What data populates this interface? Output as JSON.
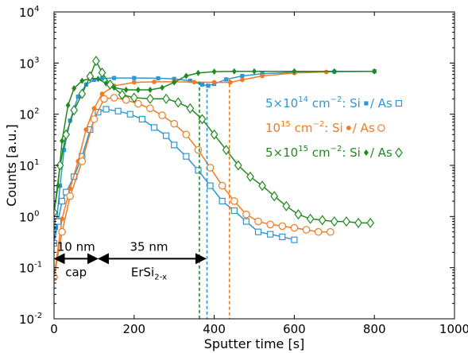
{
  "chart_data": {
    "type": "line",
    "title": "",
    "xlabel": "Sputter time [s]",
    "ylabel": "Counts [a.u.]",
    "xlim": [
      0,
      1000
    ],
    "ylim": [
      0.01,
      10000
    ],
    "y_scale": "log",
    "grid": false,
    "x_ticks": [
      "0",
      "200",
      "400",
      "600",
      "800",
      "1000"
    ],
    "y_ticks": [
      {
        "base": "10",
        "exp": "-2"
      },
      {
        "base": "10",
        "exp": "-1"
      },
      {
        "base": "10",
        "exp": "0"
      },
      {
        "base": "10",
        "exp": "1"
      },
      {
        "base": "10",
        "exp": "2"
      },
      {
        "base": "10",
        "exp": "3"
      },
      {
        "base": "10",
        "exp": "4"
      }
    ],
    "legend": {
      "placement": "right",
      "entries": [
        {
          "dose_mant": "5×10",
          "dose_exp": "14",
          "unit": " cm",
          "unit_exp": "−2",
          "si": ": Si",
          "as": " / As",
          "color": "#2f96d3",
          "si_marker": "square-filled",
          "as_marker": "square-open"
        },
        {
          "dose_mant": "10",
          "dose_exp": "15",
          "unit": " cm",
          "unit_exp": "−2",
          "si": ": Si",
          "as": " / As",
          "color": "#f07b25",
          "si_marker": "circle-filled",
          "as_marker": "circle-open"
        },
        {
          "dose_mant": "5×10",
          "dose_exp": "15",
          "unit": " cm",
          "unit_exp": "−2",
          "si": ": Si",
          "as": " / As",
          "color": "#1f8a1f",
          "si_marker": "diamond-filled",
          "as_marker": "diamond-open"
        }
      ]
    },
    "annotations": {
      "cap_thickness": "10 nm",
      "cap_label": "cap",
      "film_thickness": "35 nm",
      "film_label_main": "ErSi",
      "film_label_sub": "2-x",
      "cap_range": [
        0,
        110
      ],
      "film_range": [
        110,
        380
      ],
      "arrow_level": 0.15,
      "interface_lines": [
        {
          "x": 382,
          "y_top": 400,
          "color": "#2f96d3"
        },
        {
          "x": 438,
          "y_top": 500,
          "color": "#f07b25"
        },
        {
          "x": 363,
          "y_top": 430,
          "color": "#1f8a1f"
        }
      ]
    },
    "series": [
      {
        "color": "#2f96d3",
        "marker": "square",
        "filled": true,
        "points": [
          [
            0,
            0.3
          ],
          [
            5,
            0.6
          ],
          [
            15,
            4
          ],
          [
            25,
            20
          ],
          [
            40,
            75
          ],
          [
            60,
            220
          ],
          [
            80,
            380
          ],
          [
            100,
            470
          ],
          [
            120,
            500
          ],
          [
            150,
            510
          ],
          [
            200,
            510
          ],
          [
            260,
            505
          ],
          [
            300,
            490
          ],
          [
            340,
            450
          ],
          [
            370,
            380
          ],
          [
            385,
            360
          ],
          [
            400,
            390
          ],
          [
            430,
            480
          ],
          [
            470,
            560
          ],
          [
            520,
            620
          ],
          [
            600,
            660
          ],
          [
            700,
            680
          ],
          [
            800,
            690
          ]
        ]
      },
      {
        "color": "#2f96d3",
        "marker": "square",
        "filled": false,
        "points": [
          [
            0,
            0.3
          ],
          [
            10,
            0.8
          ],
          [
            20,
            2
          ],
          [
            30,
            3
          ],
          [
            50,
            6
          ],
          [
            70,
            15
          ],
          [
            90,
            50
          ],
          [
            110,
            110
          ],
          [
            130,
            125
          ],
          [
            160,
            115
          ],
          [
            190,
            100
          ],
          [
            220,
            80
          ],
          [
            250,
            55
          ],
          [
            280,
            38
          ],
          [
            300,
            25
          ],
          [
            330,
            15
          ],
          [
            360,
            8
          ],
          [
            390,
            4
          ],
          [
            420,
            2
          ],
          [
            450,
            1.3
          ],
          [
            480,
            0.8
          ],
          [
            510,
            0.5
          ],
          [
            540,
            0.45
          ],
          [
            570,
            0.4
          ],
          [
            600,
            0.35
          ]
        ]
      },
      {
        "color": "#f07b25",
        "marker": "circle",
        "filled": true,
        "points": [
          [
            0,
            0.065
          ],
          [
            20,
            0.9
          ],
          [
            40,
            3.5
          ],
          [
            60,
            12
          ],
          [
            80,
            50
          ],
          [
            100,
            130
          ],
          [
            120,
            250
          ],
          [
            150,
            360
          ],
          [
            200,
            420
          ],
          [
            250,
            430
          ],
          [
            300,
            430
          ],
          [
            350,
            425
          ],
          [
            400,
            420
          ],
          [
            440,
            420
          ],
          [
            470,
            470
          ],
          [
            520,
            560
          ],
          [
            600,
            640
          ],
          [
            680,
            670
          ]
        ]
      },
      {
        "color": "#f07b25",
        "marker": "circle",
        "filled": false,
        "points": [
          [
            0,
            0.065
          ],
          [
            20,
            0.5
          ],
          [
            40,
            2.5
          ],
          [
            70,
            12
          ],
          [
            100,
            80
          ],
          [
            125,
            200
          ],
          [
            150,
            210
          ],
          [
            180,
            190
          ],
          [
            210,
            160
          ],
          [
            240,
            130
          ],
          [
            270,
            95
          ],
          [
            300,
            65
          ],
          [
            330,
            40
          ],
          [
            360,
            20
          ],
          [
            390,
            9
          ],
          [
            420,
            4
          ],
          [
            450,
            2
          ],
          [
            480,
            1.1
          ],
          [
            510,
            0.8
          ],
          [
            540,
            0.7
          ],
          [
            570,
            0.65
          ],
          [
            600,
            0.6
          ],
          [
            630,
            0.55
          ],
          [
            660,
            0.5
          ],
          [
            690,
            0.5
          ]
        ]
      },
      {
        "color": "#1f8a1f",
        "marker": "diamond",
        "filled": true,
        "points": [
          [
            0,
            1.2
          ],
          [
            10,
            4
          ],
          [
            20,
            30
          ],
          [
            35,
            150
          ],
          [
            50,
            320
          ],
          [
            70,
            450
          ],
          [
            90,
            500
          ],
          [
            110,
            490
          ],
          [
            130,
            400
          ],
          [
            150,
            330
          ],
          [
            180,
            300
          ],
          [
            210,
            300
          ],
          [
            240,
            300
          ],
          [
            270,
            330
          ],
          [
            300,
            420
          ],
          [
            330,
            560
          ],
          [
            360,
            640
          ],
          [
            400,
            680
          ],
          [
            450,
            690
          ],
          [
            500,
            690
          ],
          [
            600,
            690
          ],
          [
            700,
            690
          ],
          [
            800,
            690
          ]
        ]
      },
      {
        "color": "#1f8a1f",
        "marker": "diamond",
        "filled": false,
        "points": [
          [
            0,
            1.2
          ],
          [
            15,
            10
          ],
          [
            30,
            40
          ],
          [
            50,
            120
          ],
          [
            70,
            250
          ],
          [
            90,
            550
          ],
          [
            105,
            1100
          ],
          [
            120,
            650
          ],
          [
            140,
            380
          ],
          [
            170,
            240
          ],
          [
            200,
            210
          ],
          [
            240,
            200
          ],
          [
            280,
            200
          ],
          [
            310,
            170
          ],
          [
            340,
            130
          ],
          [
            370,
            80
          ],
          [
            400,
            40
          ],
          [
            430,
            20
          ],
          [
            460,
            10
          ],
          [
            490,
            6
          ],
          [
            520,
            4
          ],
          [
            550,
            2.5
          ],
          [
            580,
            1.6
          ],
          [
            610,
            1.1
          ],
          [
            640,
            0.9
          ],
          [
            670,
            0.85
          ],
          [
            700,
            0.8
          ],
          [
            730,
            0.8
          ],
          [
            760,
            0.75
          ],
          [
            790,
            0.75
          ]
        ]
      }
    ]
  }
}
